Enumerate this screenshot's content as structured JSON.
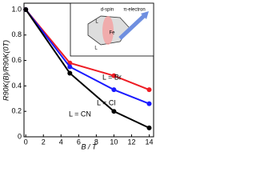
{
  "chart_data": {
    "type": "line",
    "xlabel": "B / T",
    "ylabel": "R90K(B)/R90K(0T)",
    "x": [
      0,
      5,
      10,
      14
    ],
    "series": [
      {
        "name": "L = Br",
        "color": "#ee1c24",
        "values": [
          1.0,
          0.58,
          0.48,
          0.37
        ]
      },
      {
        "name": "L = Cl",
        "color": "#1a1aff",
        "values": [
          1.0,
          0.55,
          0.37,
          0.26
        ]
      },
      {
        "name": "L = CN",
        "color": "#000000",
        "values": [
          1.0,
          0.5,
          0.2,
          0.07
        ]
      }
    ],
    "xlim": [
      -0.2,
      14.5
    ],
    "xticks": [
      0,
      2,
      4,
      6,
      8,
      10,
      12,
      14
    ],
    "ylim": [
      0,
      1.05
    ],
    "yticks": [
      0,
      {
        "value": 0.2,
        "label": "0.2"
      },
      {
        "value": 0.4,
        "label": "0.4"
      },
      {
        "value": 0.6,
        "label": "0.6"
      },
      {
        "value": 0.8,
        "label": "0.8"
      },
      {
        "value": 1.0,
        "label": "1.0"
      }
    ],
    "inset_labels": [
      "d-spin",
      "π-electron",
      "L",
      "L",
      "Fe"
    ]
  }
}
